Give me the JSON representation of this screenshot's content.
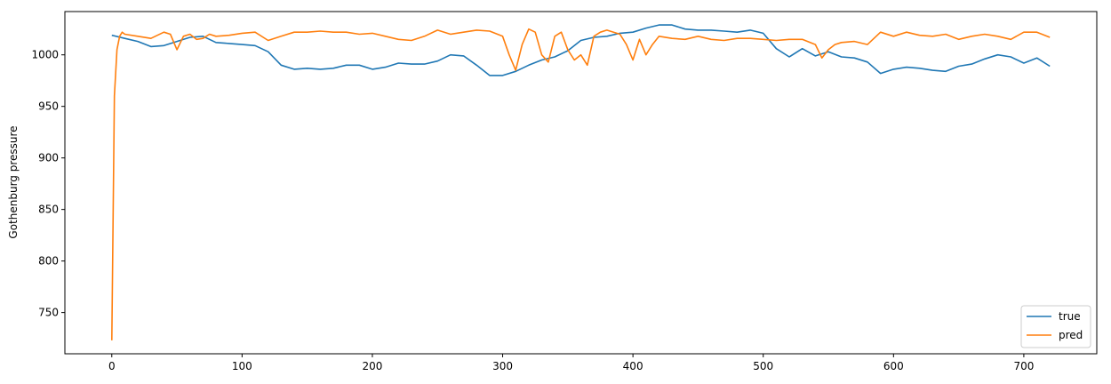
{
  "chart_data": {
    "type": "line",
    "title": "",
    "xlabel": "",
    "ylabel": "Gothenburg pressure",
    "xlim": [
      -36,
      756
    ],
    "ylim": [
      710,
      1042
    ],
    "xticks": [
      0,
      100,
      200,
      300,
      400,
      500,
      600,
      700
    ],
    "yticks": [
      750,
      800,
      850,
      900,
      950,
      1000
    ],
    "xtick_labels": [
      "0",
      "100",
      "200",
      "300",
      "400",
      "500",
      "600",
      "700"
    ],
    "ytick_labels": [
      "750",
      "800",
      "850",
      "900",
      "950",
      "1000"
    ],
    "grid": false,
    "legend_position": "lower-right",
    "series": [
      {
        "name": "true",
        "color": "#1f77b4",
        "x": [
          0,
          10,
          20,
          30,
          40,
          50,
          60,
          70,
          80,
          90,
          100,
          110,
          120,
          130,
          140,
          150,
          160,
          170,
          180,
          190,
          200,
          210,
          220,
          230,
          240,
          250,
          260,
          270,
          280,
          290,
          300,
          310,
          320,
          330,
          340,
          350,
          360,
          370,
          380,
          390,
          400,
          410,
          420,
          430,
          440,
          450,
          460,
          470,
          480,
          490,
          500,
          510,
          520,
          530,
          540,
          550,
          560,
          570,
          580,
          590,
          600,
          610,
          620,
          630,
          640,
          650,
          660,
          670,
          680,
          690,
          700,
          710,
          720
        ],
        "values": [
          1019,
          1016,
          1013,
          1008,
          1009,
          1013,
          1017,
          1018,
          1012,
          1011,
          1010,
          1009,
          1003,
          990,
          986,
          987,
          986,
          987,
          990,
          990,
          986,
          988,
          992,
          991,
          991,
          994,
          1000,
          999,
          990,
          980,
          980,
          984,
          990,
          995,
          998,
          1004,
          1014,
          1017,
          1018,
          1021,
          1022,
          1026,
          1029,
          1029,
          1025,
          1024,
          1024,
          1023,
          1022,
          1024,
          1021,
          1006,
          998,
          1006,
          999,
          1003,
          998,
          997,
          993,
          982,
          986,
          988,
          987,
          985,
          984,
          989,
          991,
          996,
          1000,
          998,
          992,
          997,
          989
        ]
      },
      {
        "name": "pred",
        "color": "#ff7f0e",
        "x": [
          0,
          2,
          4,
          6,
          8,
          10,
          20,
          30,
          40,
          45,
          50,
          55,
          60,
          65,
          70,
          75,
          80,
          90,
          100,
          110,
          120,
          130,
          140,
          150,
          160,
          170,
          180,
          190,
          200,
          210,
          220,
          230,
          240,
          250,
          260,
          270,
          280,
          290,
          300,
          305,
          310,
          315,
          320,
          325,
          330,
          335,
          340,
          345,
          350,
          355,
          360,
          365,
          370,
          375,
          380,
          390,
          395,
          400,
          405,
          410,
          415,
          420,
          430,
          440,
          450,
          460,
          470,
          480,
          490,
          500,
          510,
          520,
          530,
          540,
          545,
          550,
          555,
          560,
          570,
          580,
          590,
          600,
          610,
          620,
          630,
          640,
          650,
          660,
          670,
          680,
          690,
          700,
          710,
          720
        ],
        "values": [
          723,
          960,
          1005,
          1018,
          1022,
          1020,
          1018,
          1016,
          1022,
          1020,
          1005,
          1018,
          1020,
          1015,
          1016,
          1020,
          1018,
          1019,
          1021,
          1022,
          1014,
          1018,
          1022,
          1022,
          1023,
          1022,
          1022,
          1020,
          1021,
          1018,
          1015,
          1014,
          1018,
          1024,
          1020,
          1022,
          1024,
          1023,
          1018,
          1000,
          985,
          1010,
          1025,
          1022,
          1000,
          993,
          1018,
          1022,
          1005,
          995,
          1000,
          990,
          1018,
          1022,
          1024,
          1020,
          1010,
          995,
          1015,
          1000,
          1010,
          1018,
          1016,
          1015,
          1018,
          1015,
          1014,
          1016,
          1016,
          1015,
          1014,
          1015,
          1015,
          1010,
          997,
          1005,
          1010,
          1012,
          1013,
          1010,
          1022,
          1018,
          1022,
          1019,
          1018,
          1020,
          1015,
          1018,
          1020,
          1018,
          1015,
          1022,
          1022,
          1017
        ]
      }
    ]
  }
}
